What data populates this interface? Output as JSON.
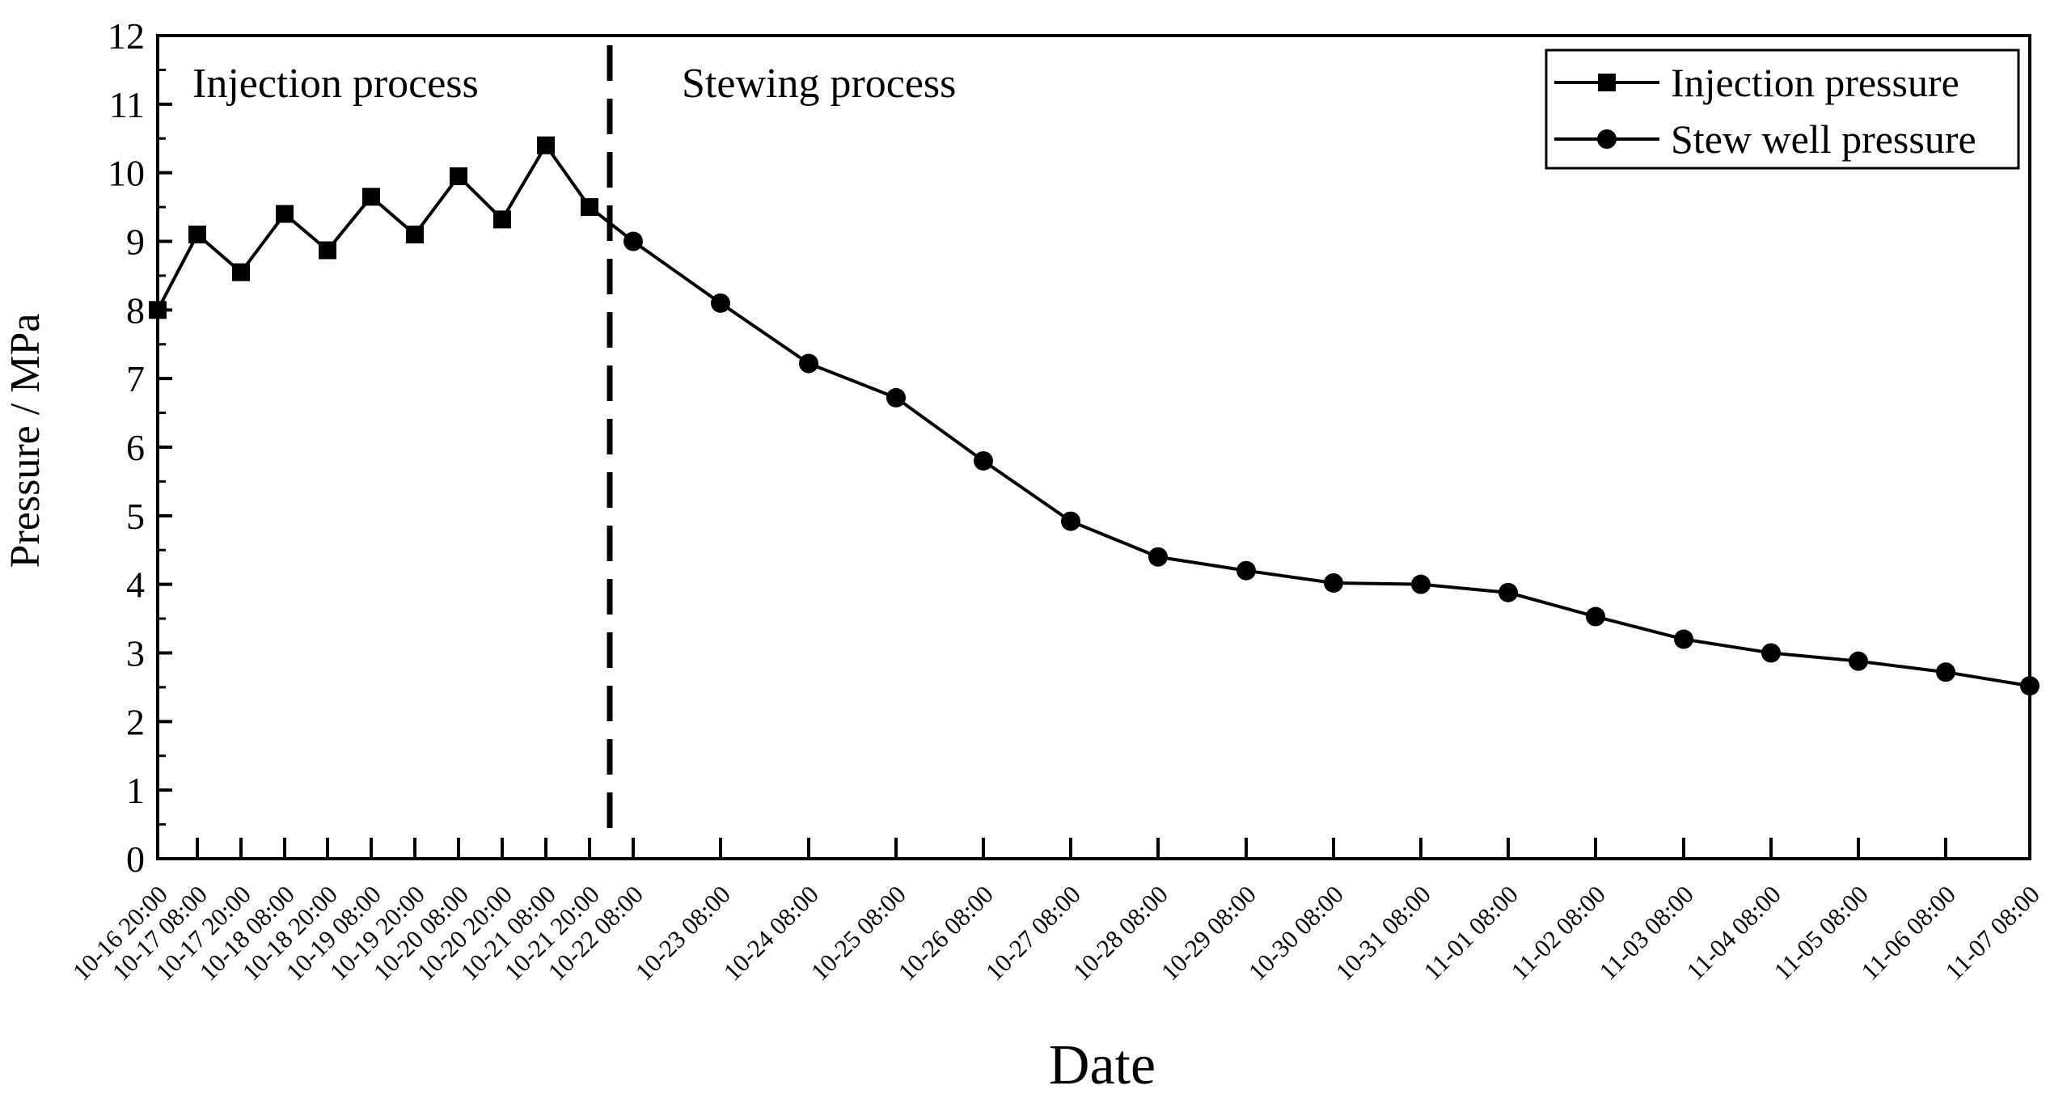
{
  "chart_data": {
    "type": "line",
    "title": "",
    "xlabel": "Date",
    "ylabel": "Pressure / MPa",
    "ylim": [
      0,
      12
    ],
    "yticks": [
      0,
      1,
      2,
      3,
      4,
      5,
      6,
      7,
      8,
      9,
      10,
      11,
      12
    ],
    "categories": [
      "10-16 20:00",
      "10-17 08:00",
      "10-17 20:00",
      "10-18 08:00",
      "10-18 20:00",
      "10-19 08:00",
      "10-19 20:00",
      "10-20 08:00",
      "10-20 20:00",
      "10-21 08:00",
      "10-21 20:00",
      "10-22 08:00",
      "10-23 08:00",
      "10-24 08:00",
      "10-25 08:00",
      "10-26 08:00",
      "10-27 08:00",
      "10-28 08:00",
      "10-29 08:00",
      "10-30 08:00",
      "10-31 08:00",
      "11-01 08:00",
      "11-02 08:00",
      "11-03 08:00",
      "11-04 08:00",
      "11-05 08:00",
      "11-06 08:00",
      "11-07 08:00"
    ],
    "series": [
      {
        "name": "Injection pressure",
        "marker": "square",
        "x": [
          "10-16 20:00",
          "10-17 08:00",
          "10-17 20:00",
          "10-18 08:00",
          "10-18 20:00",
          "10-19 08:00",
          "10-19 20:00",
          "10-20 08:00",
          "10-20 20:00",
          "10-21 08:00",
          "10-21 20:00"
        ],
        "values": [
          8.0,
          9.1,
          8.55,
          9.4,
          8.87,
          9.65,
          9.1,
          9.95,
          9.32,
          10.4,
          9.5
        ]
      },
      {
        "name": "Stew well pressure",
        "marker": "circle",
        "x": [
          "10-22 08:00",
          "10-23 08:00",
          "10-24 08:00",
          "10-25 08:00",
          "10-26 08:00",
          "10-27 08:00",
          "10-28 08:00",
          "10-29 08:00",
          "10-30 08:00",
          "10-31 08:00",
          "11-01 08:00",
          "11-02 08:00",
          "11-03 08:00",
          "11-04 08:00",
          "11-05 08:00",
          "11-06 08:00",
          "11-07 08:00"
        ],
        "values": [
          9.0,
          8.1,
          7.22,
          6.72,
          5.8,
          4.92,
          4.4,
          4.2,
          4.02,
          4.0,
          3.88,
          3.53,
          3.2,
          3.0,
          2.88,
          2.72,
          2.52
        ]
      }
    ],
    "annotations": {
      "injection_label": "Injection process",
      "stewing_label": "Stewing process",
      "divider": "dashed vertical line between 10-21 20:00 and 10-22 08:00"
    },
    "legend_position": "top-right",
    "grid": false
  }
}
